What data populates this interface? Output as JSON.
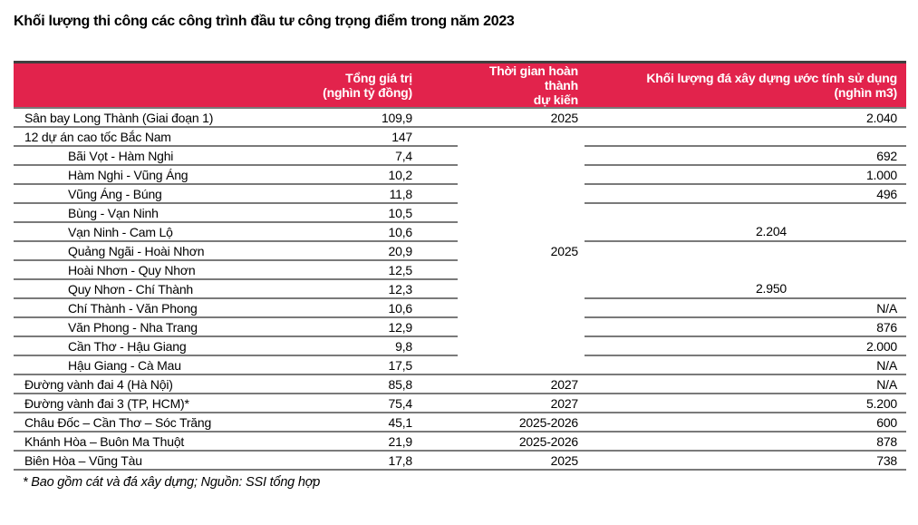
{
  "page_title": "Khối lượng thi công các công trình đầu tư công trọng điểm trong năm 2023",
  "table": {
    "header": {
      "project": "",
      "total_line1": "Tổng giá trị",
      "total_line2": "(nghìn tỷ đồng)",
      "time_line1": "Thời gian hoàn thành",
      "time_line2": "dự kiến",
      "volume_line1": "Khối lượng đá xây dựng ước tính sử dụng",
      "volume_line2": "(nghìn m3)"
    },
    "rows": [
      {
        "name": "Sân bay Long Thành (Giai đoạn 1)",
        "total": "109,9",
        "time": "2025",
        "volume": "2.040"
      },
      {
        "name": "12 dự án cao tốc Bắc Nam",
        "total": "147",
        "time": "",
        "volume": ""
      },
      {
        "name": "Bãi Vọt - Hàm Nghi",
        "total": "7,4",
        "time": "",
        "volume": "692"
      },
      {
        "name": "Hàm Nghi - Vũng Áng",
        "total": "10,2",
        "time": "",
        "volume": "1.000"
      },
      {
        "name": "Vũng Áng - Búng",
        "total": "11,8",
        "time": "",
        "volume": "496"
      },
      {
        "name": "Bùng - Vạn Ninh",
        "total": "10,5",
        "time": "",
        "volume": ""
      },
      {
        "name": "Vạn Ninh - Cam Lộ",
        "total": "10,6",
        "time": "",
        "volume": "2.204"
      },
      {
        "name": "Quảng Ngãi - Hoài Nhơn",
        "total": "20,9",
        "time": "2025",
        "volume": ""
      },
      {
        "name": "Hoài Nhơn - Quy Nhơn",
        "total": "12,5",
        "time": "",
        "volume": ""
      },
      {
        "name": "Quy Nhơn - Chí Thành",
        "total": "12,3",
        "time": "",
        "volume": "2.950"
      },
      {
        "name": "Chí Thành - Văn Phong",
        "total": "10,6",
        "time": "",
        "volume": "N/A"
      },
      {
        "name": "Văn Phong - Nha Trang",
        "total": "12,9",
        "time": "",
        "volume": "876"
      },
      {
        "name": "Cần Thơ - Hậu Giang",
        "total": "9,8",
        "time": "",
        "volume": "2.000"
      },
      {
        "name": "Hậu Giang - Cà Mau",
        "total": "17,5",
        "time": "",
        "volume": "N/A"
      },
      {
        "name": "Đường vành đai 4 (Hà Nội)",
        "total": "85,8",
        "time": "2027",
        "volume": "N/A"
      },
      {
        "name": "Đường vành đai 3 (TP, HCM)*",
        "total": "75,4",
        "time": "2027",
        "volume": "5.200"
      },
      {
        "name": "Châu Đốc – Cần Thơ – Sóc Trăng",
        "total": "45,1",
        "time": "2025-2026",
        "volume": "600"
      },
      {
        "name": "Khánh Hòa – Buôn Ma Thuột",
        "total": "21,9",
        "time": "2025-2026",
        "volume": "878"
      },
      {
        "name": "Biên Hòa – Vũng Tàu",
        "total": "17,8",
        "time": "2025",
        "volume": "738"
      }
    ]
  },
  "footnote": "* Bao gồm cát và đá xây dựng; Nguồn: SSI tổng hợp",
  "colors": {
    "header_bg": "#E2234C",
    "header_text": "#FFFFFF",
    "row_line": "#7A7A7A",
    "table_top": "#3F3F3F",
    "title_text": "#000000"
  }
}
